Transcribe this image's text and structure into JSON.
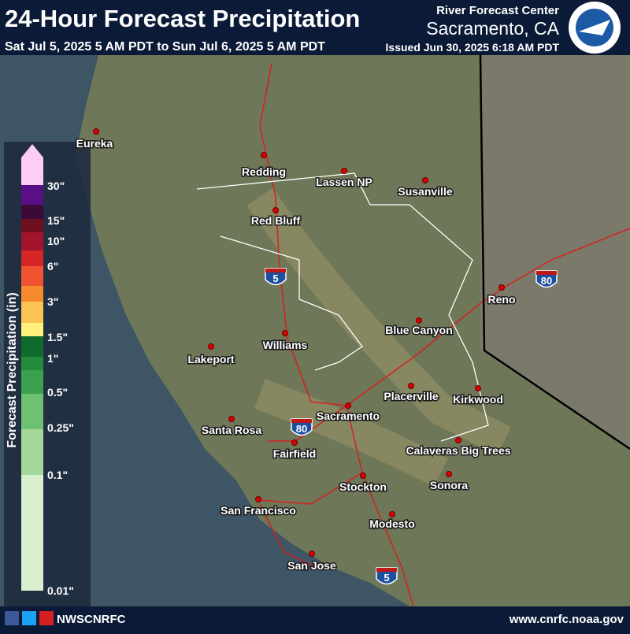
{
  "header": {
    "title": "24-Hour Forecast Precipitation",
    "subtitle": "Sat Jul 5, 2025 5 AM PDT to Sun Jul 6, 2025 5 AM PDT",
    "center": "River Forecast Center",
    "office": "Sacramento, CA",
    "issued": "Issued Jun 30, 2025 6:18 AM PDT"
  },
  "legend": {
    "label": "Forecast Precipitation (in)",
    "ticks": [
      "30\"",
      "15\"",
      "10\"",
      "6\"",
      "3\"",
      "1.5\"",
      "1\"",
      "0.5\"",
      "0.25\"",
      "0.1\"",
      "0.01\""
    ],
    "colors": [
      "#ffccf5",
      "#5a0f86",
      "#3b0a38",
      "#6e0f1e",
      "#a3132c",
      "#d62525",
      "#f05330",
      "#f68a2c",
      "#fcc452",
      "#fff27c",
      "#0e6b2b",
      "#238c3a",
      "#3aa24f",
      "#6dc171",
      "#a4d99b",
      "#d9efcd"
    ]
  },
  "map": {
    "cities": [
      "Eureka",
      "Redding",
      "Lassen NP",
      "Susanville",
      "Red Bluff",
      "Reno",
      "Blue Canyon",
      "Williams",
      "Lakeport",
      "Placerville",
      "Kirkwood",
      "Sacramento",
      "Santa Rosa",
      "Calaveras Big Trees",
      "Fairfield",
      "Sonora",
      "Stockton",
      "San Francisco",
      "Modesto",
      "San Jose"
    ],
    "shields": [
      "5",
      "80",
      "80",
      "5"
    ]
  },
  "footer": {
    "handle": "NWSCNRFC",
    "url": "www.cnrfc.noaa.gov"
  }
}
